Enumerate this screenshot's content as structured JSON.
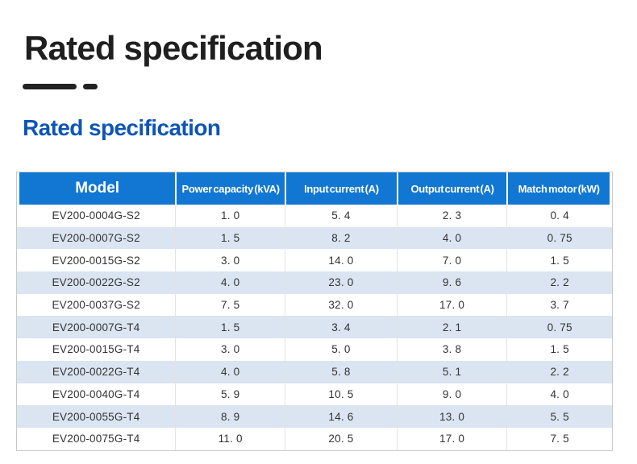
{
  "header": {
    "title": "Rated specification"
  },
  "section": {
    "title": "Rated specification"
  },
  "table": {
    "columns": [
      "Model",
      "Power capacity (kVA)",
      "Input current (A)",
      "Output current (A)",
      "Match motor (kW)"
    ],
    "rows": [
      [
        "EV200-0004G-S2",
        "1. 0",
        "5. 4",
        "2. 3",
        "0. 4"
      ],
      [
        "EV200-0007G-S2",
        "1. 5",
        "8. 2",
        "4. 0",
        "0. 75"
      ],
      [
        "EV200-0015G-S2",
        "3. 0",
        "14. 0",
        "7. 0",
        "1. 5"
      ],
      [
        "EV200-0022G-S2",
        "4. 0",
        "23. 0",
        "9. 6",
        "2. 2"
      ],
      [
        "EV200-0037G-S2",
        "7. 5",
        "32. 0",
        "17. 0",
        "3. 7"
      ],
      [
        "EV200-0007G-T4",
        "1. 5",
        "3. 4",
        "2. 1",
        "0. 75"
      ],
      [
        "EV200-0015G-T4",
        "3. 0",
        "5. 0",
        "3. 8",
        "1. 5"
      ],
      [
        "EV200-0022G-T4",
        "4. 0",
        "5. 8",
        "5. 1",
        "2. 2"
      ],
      [
        "EV200-0040G-T4",
        "5. 9",
        "10. 5",
        "9. 0",
        "4. 0"
      ],
      [
        "EV200-0055G-T4",
        "8. 9",
        "14. 6",
        "13. 0",
        "5. 5"
      ],
      [
        "EV200-0075G-T4",
        "11. 0",
        "20. 5",
        "17. 0",
        "7. 5"
      ]
    ]
  },
  "colors": {
    "header_bg": "#1277d3",
    "row_alt_bg": "#dbe5f1",
    "section_title_blue": "#0d55b7",
    "main_title_dark": "#1f1f1f",
    "body_text": "#333333",
    "table_border": "#c9c9c9"
  }
}
